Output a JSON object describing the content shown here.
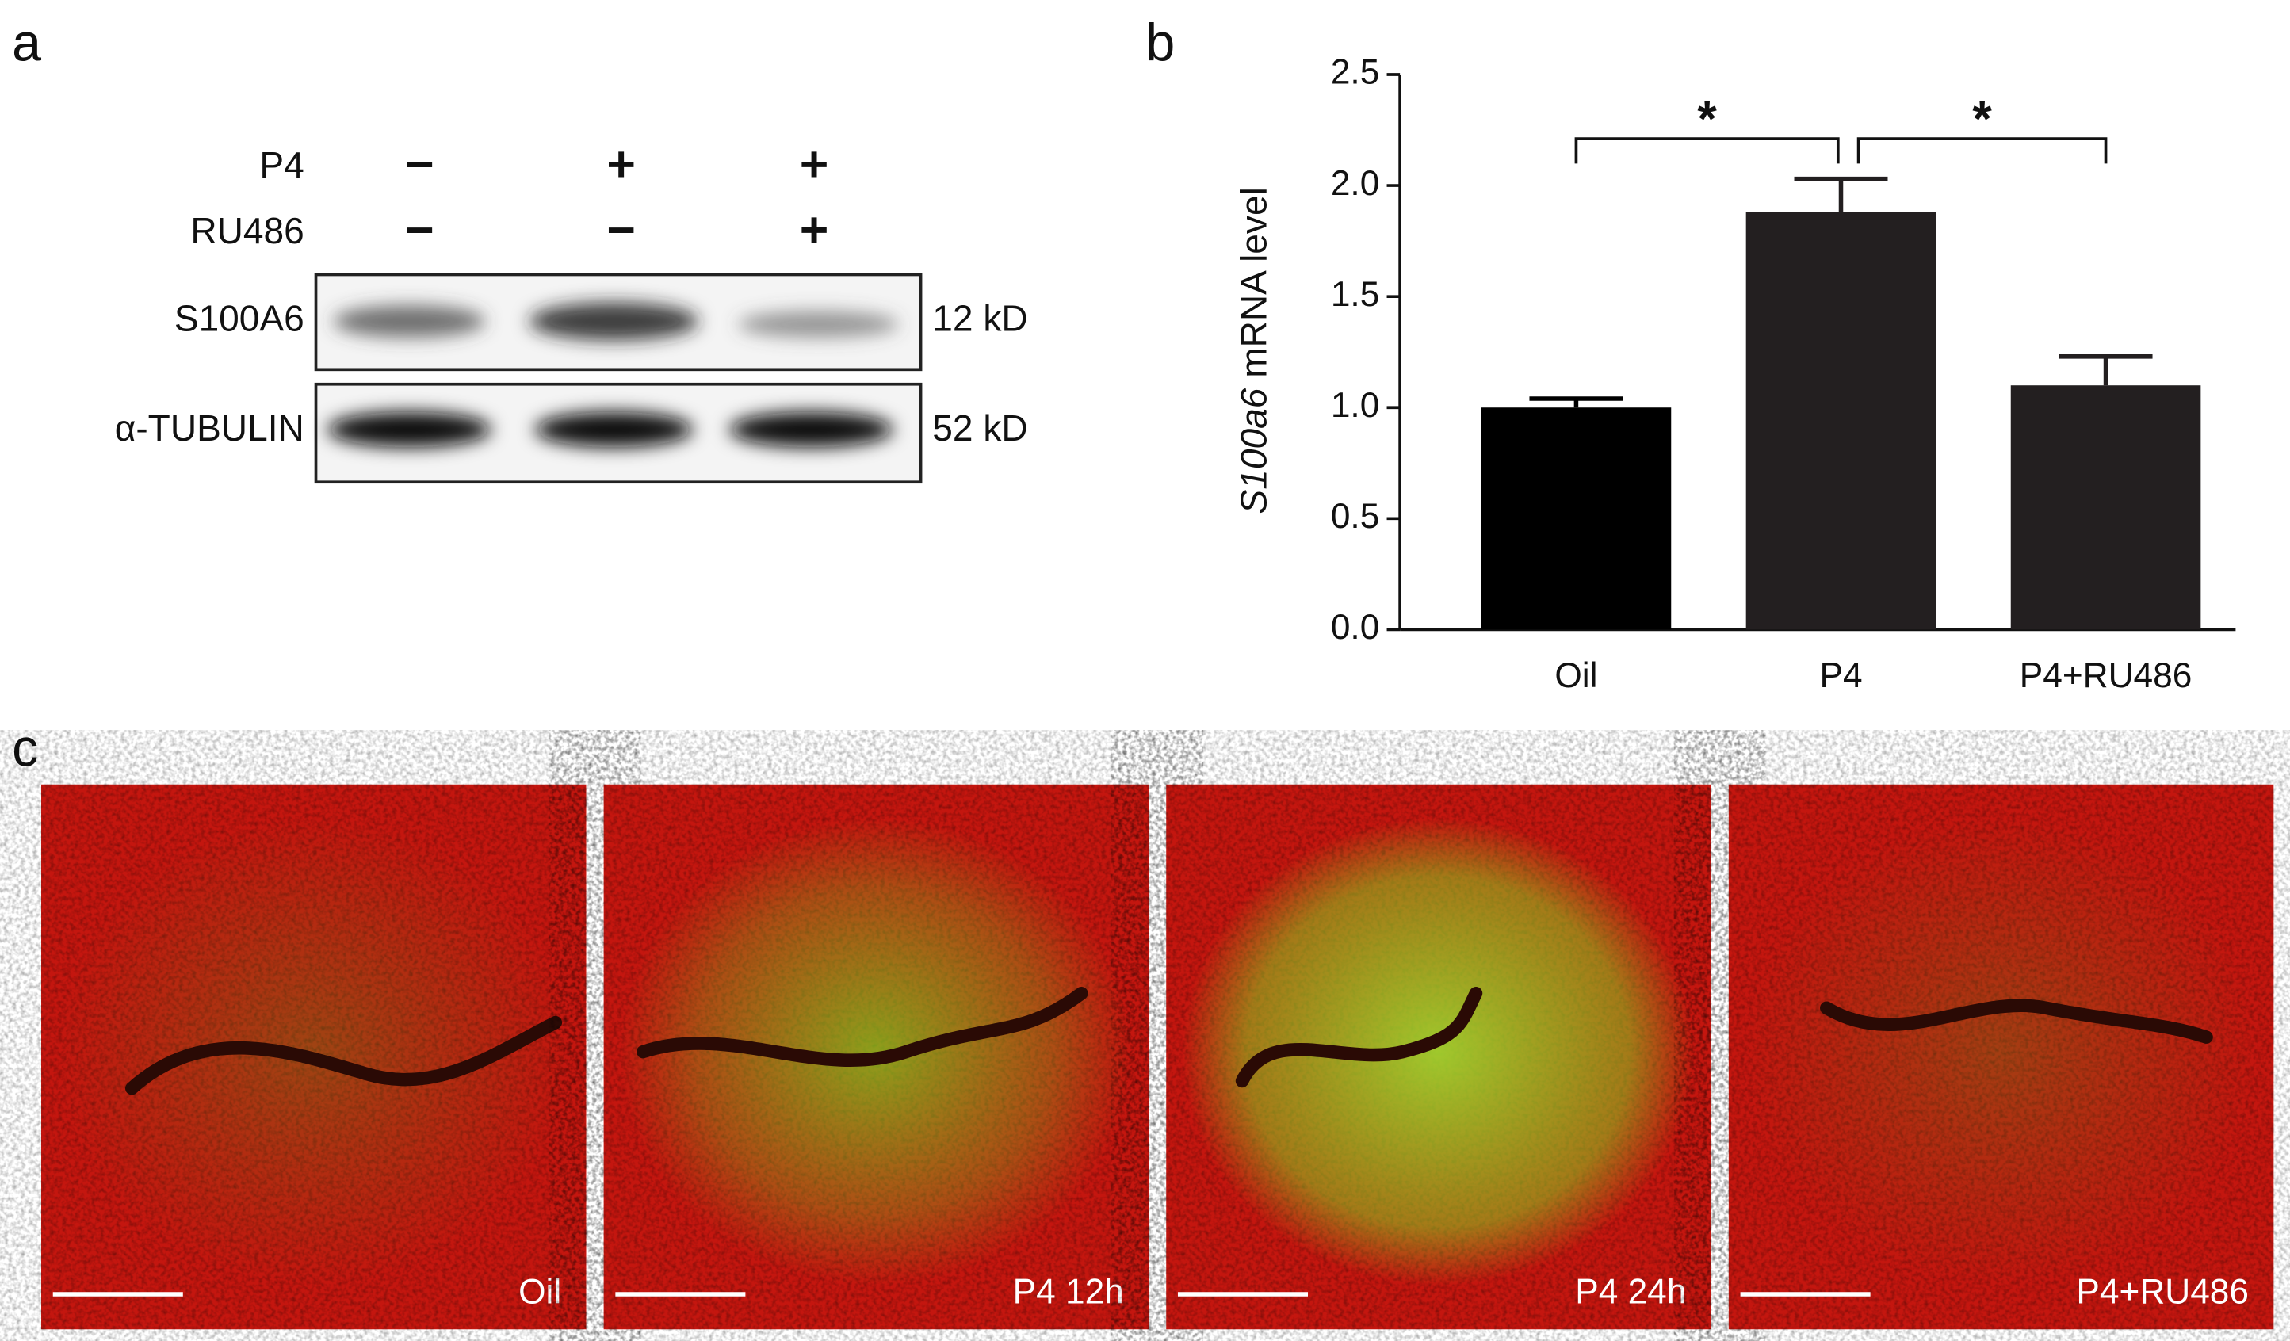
{
  "panels": {
    "a": {
      "label": "a",
      "treatments": [
        {
          "name": "P4",
          "signs": [
            "−",
            "+",
            "+"
          ]
        },
        {
          "name": "RU486",
          "signs": [
            "−",
            "−",
            "+"
          ]
        }
      ],
      "bands": [
        {
          "name": "S100A6",
          "size": "12 kD"
        },
        {
          "name": "α-TUBULIN",
          "size": "52 kD"
        }
      ]
    },
    "b": {
      "label": "b"
    },
    "c": {
      "label": "c",
      "images": [
        "Oil",
        "P4 12h",
        "P4 24h",
        "P4+RU486"
      ]
    }
  },
  "chart_data": {
    "type": "bar",
    "y_label_parts": [
      {
        "text": "S100a6",
        "italic": true
      },
      {
        "text": "mRNA level",
        "italic": false
      }
    ],
    "categories": [
      "Oil",
      "P4",
      "P4+RU486"
    ],
    "values": [
      1.0,
      1.88,
      1.1
    ],
    "errors": [
      0.04,
      0.15,
      0.13
    ],
    "colors": [
      "#000000",
      "#231f20",
      "#231f20"
    ],
    "ylim": [
      0,
      2.5
    ],
    "yticks": [
      {
        "value": 0,
        "label": "0.0"
      },
      0.5,
      {
        "value": 1,
        "label": "1.0"
      },
      1.5,
      {
        "value": 2,
        "label": "2.0"
      },
      2.5
    ],
    "significance": [
      {
        "pair": [
          0,
          1
        ],
        "label": "*"
      },
      {
        "pair": [
          1,
          2
        ],
        "label": "*"
      }
    ]
  }
}
